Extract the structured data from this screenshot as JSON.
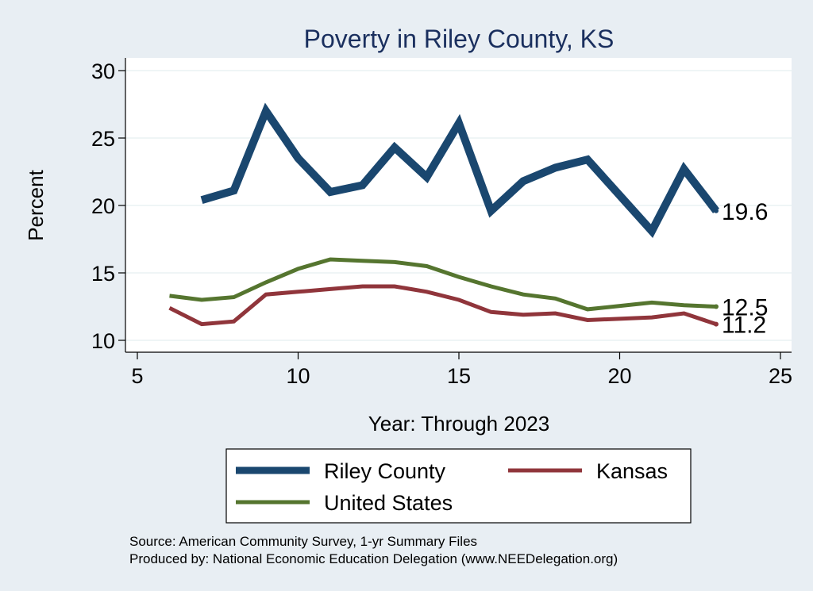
{
  "chart_data": {
    "type": "line",
    "title": "Poverty in Riley County, KS",
    "xlabel": "Year: Through 2023",
    "ylabel": "Percent",
    "xlim": [
      5,
      25
    ],
    "ylim": [
      10,
      30
    ],
    "xticks": [
      5,
      10,
      15,
      20,
      25
    ],
    "yticks": [
      10,
      15,
      20,
      25,
      30
    ],
    "grid": true,
    "series": [
      {
        "name": "Riley County",
        "color": "#1a476f",
        "x": [
          7,
          8,
          9,
          10,
          11,
          12,
          13,
          14,
          15,
          16,
          17,
          18,
          19,
          21,
          22,
          23
        ],
        "values": [
          20.4,
          21.1,
          27.0,
          23.5,
          21.0,
          21.5,
          24.3,
          22.1,
          26.1,
          19.6,
          21.8,
          22.8,
          23.4,
          18.1,
          22.7,
          19.6
        ],
        "end_label": "19.6"
      },
      {
        "name": "Kansas",
        "color": "#90353b",
        "x": [
          6,
          7,
          8,
          9,
          10,
          11,
          12,
          13,
          14,
          15,
          16,
          17,
          18,
          19,
          21,
          22,
          23
        ],
        "values": [
          12.4,
          11.2,
          11.4,
          13.4,
          13.6,
          13.8,
          14.0,
          14.0,
          13.6,
          13.0,
          12.1,
          11.9,
          12.0,
          11.5,
          11.7,
          12.0,
          11.2
        ],
        "end_label": "11.2"
      },
      {
        "name": "United States",
        "color": "#55752f",
        "x": [
          6,
          7,
          8,
          9,
          10,
          11,
          12,
          13,
          14,
          15,
          16,
          17,
          18,
          19,
          21,
          22,
          23
        ],
        "values": [
          13.3,
          13.0,
          13.2,
          14.3,
          15.3,
          16.0,
          15.9,
          15.8,
          15.5,
          14.7,
          14.0,
          13.4,
          13.1,
          12.3,
          12.8,
          12.6,
          12.5
        ],
        "end_label": "12.5"
      }
    ],
    "legend": {
      "placement": "bottom",
      "entries": [
        "Riley County",
        "Kansas",
        "United States"
      ]
    },
    "notes": [
      "Source: American Community Survey, 1-yr Summary Files",
      "Produced by: National Economic Education Delegation (www.NEEDelegation.org)"
    ]
  },
  "colors": {
    "background": "#e8eef3",
    "plot_background": "#ffffff",
    "grid": "#eaf2f3",
    "title": "#1a2f5e"
  }
}
